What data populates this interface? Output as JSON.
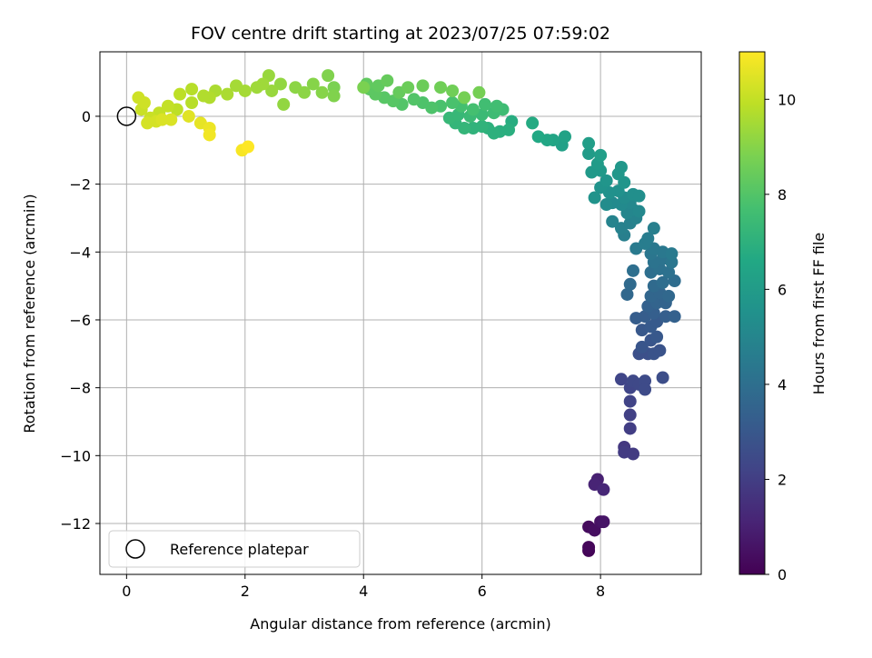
{
  "chart_data": {
    "type": "scatter",
    "title": "FOV centre drift starting at 2023/07/25 07:59:02",
    "xlabel": "Angular distance from reference (arcmin)",
    "ylabel": "Rotation from reference (arcmin)",
    "xlim": [
      -0.45,
      9.7
    ],
    "ylim": [
      -13.5,
      1.9
    ],
    "xticks": [
      0,
      2,
      4,
      6,
      8
    ],
    "yticks": [
      -12,
      -10,
      -8,
      -6,
      -4,
      -2,
      0
    ],
    "grid": true,
    "colormap": "viridis",
    "colorbar": {
      "label": "Hours from first FF file",
      "range": [
        0,
        11
      ],
      "ticks": [
        0,
        2,
        4,
        6,
        8,
        10
      ]
    },
    "legend": {
      "placement": "lower-left",
      "entries": [
        "Reference platepar"
      ]
    },
    "reference_point": {
      "x": 0,
      "y": 0
    },
    "points": [
      {
        "x": 7.8,
        "y": -12.8,
        "t": 0.1
      },
      {
        "x": 7.8,
        "y": -12.7,
        "t": 0.2
      },
      {
        "x": 7.8,
        "y": -12.1,
        "t": 0.3
      },
      {
        "x": 7.9,
        "y": -12.2,
        "t": 0.4
      },
      {
        "x": 8.0,
        "y": -11.95,
        "t": 0.5
      },
      {
        "x": 8.05,
        "y": -11.95,
        "t": 0.6
      },
      {
        "x": 7.95,
        "y": -10.7,
        "t": 1.0
      },
      {
        "x": 7.9,
        "y": -10.85,
        "t": 1.1
      },
      {
        "x": 8.05,
        "y": -11.0,
        "t": 1.2
      },
      {
        "x": 8.4,
        "y": -9.75,
        "t": 1.8
      },
      {
        "x": 8.4,
        "y": -9.9,
        "t": 1.9
      },
      {
        "x": 8.55,
        "y": -9.95,
        "t": 1.9
      },
      {
        "x": 8.5,
        "y": -9.2,
        "t": 2.0
      },
      {
        "x": 8.5,
        "y": -8.8,
        "t": 2.1
      },
      {
        "x": 8.5,
        "y": -8.4,
        "t": 2.2
      },
      {
        "x": 8.35,
        "y": -7.75,
        "t": 2.3
      },
      {
        "x": 8.5,
        "y": -8.0,
        "t": 2.3
      },
      {
        "x": 8.55,
        "y": -7.8,
        "t": 2.4
      },
      {
        "x": 8.65,
        "y": -7.9,
        "t": 2.4
      },
      {
        "x": 8.75,
        "y": -7.8,
        "t": 2.5
      },
      {
        "x": 8.75,
        "y": -8.05,
        "t": 2.5
      },
      {
        "x": 9.05,
        "y": -7.7,
        "t": 2.6
      },
      {
        "x": 8.65,
        "y": -7.0,
        "t": 2.7
      },
      {
        "x": 8.8,
        "y": -7.0,
        "t": 2.7
      },
      {
        "x": 8.9,
        "y": -7.0,
        "t": 2.8
      },
      {
        "x": 9.0,
        "y": -6.9,
        "t": 2.8
      },
      {
        "x": 8.7,
        "y": -6.8,
        "t": 2.9
      },
      {
        "x": 8.85,
        "y": -6.6,
        "t": 2.9
      },
      {
        "x": 8.95,
        "y": -6.5,
        "t": 3.0
      },
      {
        "x": 8.7,
        "y": -6.3,
        "t": 3.0
      },
      {
        "x": 8.85,
        "y": -6.2,
        "t": 3.1
      },
      {
        "x": 8.95,
        "y": -6.05,
        "t": 3.1
      },
      {
        "x": 8.6,
        "y": -5.95,
        "t": 3.2
      },
      {
        "x": 8.75,
        "y": -5.9,
        "t": 3.2
      },
      {
        "x": 8.9,
        "y": -5.8,
        "t": 3.3
      },
      {
        "x": 9.1,
        "y": -5.9,
        "t": 3.3
      },
      {
        "x": 9.25,
        "y": -5.9,
        "t": 3.4
      },
      {
        "x": 8.8,
        "y": -5.6,
        "t": 3.4
      },
      {
        "x": 8.95,
        "y": -5.5,
        "t": 3.5
      },
      {
        "x": 9.1,
        "y": -5.5,
        "t": 3.5
      },
      {
        "x": 8.85,
        "y": -5.3,
        "t": 3.6
      },
      {
        "x": 9.0,
        "y": -5.2,
        "t": 3.6
      },
      {
        "x": 9.15,
        "y": -5.3,
        "t": 3.7
      },
      {
        "x": 8.45,
        "y": -5.25,
        "t": 3.7
      },
      {
        "x": 8.5,
        "y": -4.95,
        "t": 3.8
      },
      {
        "x": 8.9,
        "y": -5.0,
        "t": 3.8
      },
      {
        "x": 9.05,
        "y": -4.9,
        "t": 3.9
      },
      {
        "x": 9.25,
        "y": -4.85,
        "t": 3.9
      },
      {
        "x": 8.55,
        "y": -4.55,
        "t": 4.0
      },
      {
        "x": 8.85,
        "y": -4.6,
        "t": 4.0
      },
      {
        "x": 9.0,
        "y": -4.5,
        "t": 4.1
      },
      {
        "x": 9.15,
        "y": -4.6,
        "t": 4.1
      },
      {
        "x": 8.9,
        "y": -4.3,
        "t": 4.2
      },
      {
        "x": 9.05,
        "y": -4.2,
        "t": 4.2
      },
      {
        "x": 9.2,
        "y": -4.3,
        "t": 4.3
      },
      {
        "x": 8.85,
        "y": -4.05,
        "t": 4.3
      },
      {
        "x": 8.9,
        "y": -3.9,
        "t": 4.4
      },
      {
        "x": 9.05,
        "y": -4.0,
        "t": 4.4
      },
      {
        "x": 9.2,
        "y": -4.05,
        "t": 4.5
      },
      {
        "x": 8.6,
        "y": -3.9,
        "t": 4.5
      },
      {
        "x": 8.75,
        "y": -3.75,
        "t": 4.6
      },
      {
        "x": 8.8,
        "y": -3.6,
        "t": 4.6
      },
      {
        "x": 8.9,
        "y": -3.3,
        "t": 4.7
      },
      {
        "x": 8.4,
        "y": -3.5,
        "t": 4.7
      },
      {
        "x": 8.35,
        "y": -3.3,
        "t": 4.8
      },
      {
        "x": 8.5,
        "y": -3.15,
        "t": 4.8
      },
      {
        "x": 8.2,
        "y": -3.1,
        "t": 4.9
      },
      {
        "x": 8.6,
        "y": -3.0,
        "t": 4.9
      },
      {
        "x": 8.45,
        "y": -2.85,
        "t": 5.0
      },
      {
        "x": 8.55,
        "y": -2.75,
        "t": 5.0
      },
      {
        "x": 8.65,
        "y": -2.8,
        "t": 5.1
      },
      {
        "x": 8.5,
        "y": -2.55,
        "t": 5.1
      },
      {
        "x": 8.35,
        "y": -2.6,
        "t": 5.2
      },
      {
        "x": 8.2,
        "y": -2.55,
        "t": 5.2
      },
      {
        "x": 8.1,
        "y": -2.6,
        "t": 5.3
      },
      {
        "x": 8.4,
        "y": -2.4,
        "t": 5.3
      },
      {
        "x": 8.55,
        "y": -2.3,
        "t": 5.4
      },
      {
        "x": 8.65,
        "y": -2.35,
        "t": 5.4
      },
      {
        "x": 8.3,
        "y": -2.2,
        "t": 5.5
      },
      {
        "x": 8.15,
        "y": -2.25,
        "t": 5.5
      },
      {
        "x": 8.0,
        "y": -2.1,
        "t": 5.6
      },
      {
        "x": 7.9,
        "y": -2.4,
        "t": 5.6
      },
      {
        "x": 8.4,
        "y": -1.95,
        "t": 5.7
      },
      {
        "x": 8.1,
        "y": -1.9,
        "t": 5.7
      },
      {
        "x": 8.3,
        "y": -1.7,
        "t": 5.8
      },
      {
        "x": 8.35,
        "y": -1.5,
        "t": 5.8
      },
      {
        "x": 8.0,
        "y": -1.6,
        "t": 5.9
      },
      {
        "x": 7.85,
        "y": -1.65,
        "t": 5.9
      },
      {
        "x": 7.95,
        "y": -1.4,
        "t": 6.0
      },
      {
        "x": 7.8,
        "y": -1.1,
        "t": 6.0
      },
      {
        "x": 8.0,
        "y": -1.15,
        "t": 6.1
      },
      {
        "x": 7.8,
        "y": -0.8,
        "t": 6.1
      },
      {
        "x": 7.35,
        "y": -0.85,
        "t": 6.2
      },
      {
        "x": 7.4,
        "y": -0.6,
        "t": 6.3
      },
      {
        "x": 7.2,
        "y": -0.7,
        "t": 6.4
      },
      {
        "x": 7.1,
        "y": -0.7,
        "t": 6.5
      },
      {
        "x": 6.95,
        "y": -0.6,
        "t": 6.6
      },
      {
        "x": 6.85,
        "y": -0.2,
        "t": 6.7
      },
      {
        "x": 6.5,
        "y": -0.15,
        "t": 6.8
      },
      {
        "x": 6.45,
        "y": -0.4,
        "t": 6.9
      },
      {
        "x": 6.3,
        "y": -0.45,
        "t": 6.9
      },
      {
        "x": 6.2,
        "y": -0.5,
        "t": 7.0
      },
      {
        "x": 6.1,
        "y": -0.35,
        "t": 7.0
      },
      {
        "x": 6.0,
        "y": -0.3,
        "t": 7.1
      },
      {
        "x": 5.85,
        "y": -0.35,
        "t": 7.1
      },
      {
        "x": 5.7,
        "y": -0.35,
        "t": 7.2
      },
      {
        "x": 5.55,
        "y": -0.2,
        "t": 7.2
      },
      {
        "x": 5.45,
        "y": -0.05,
        "t": 7.3
      },
      {
        "x": 5.6,
        "y": 0.05,
        "t": 7.3
      },
      {
        "x": 5.8,
        "y": 0.0,
        "t": 7.4
      },
      {
        "x": 6.0,
        "y": 0.05,
        "t": 7.4
      },
      {
        "x": 6.2,
        "y": 0.1,
        "t": 7.5
      },
      {
        "x": 6.35,
        "y": 0.2,
        "t": 7.5
      },
      {
        "x": 6.25,
        "y": 0.3,
        "t": 7.6
      },
      {
        "x": 6.05,
        "y": 0.35,
        "t": 7.6
      },
      {
        "x": 5.85,
        "y": 0.2,
        "t": 7.7
      },
      {
        "x": 5.65,
        "y": 0.3,
        "t": 7.7
      },
      {
        "x": 5.5,
        "y": 0.4,
        "t": 7.8
      },
      {
        "x": 5.3,
        "y": 0.3,
        "t": 7.8
      },
      {
        "x": 5.15,
        "y": 0.25,
        "t": 7.9
      },
      {
        "x": 5.0,
        "y": 0.4,
        "t": 7.9
      },
      {
        "x": 4.85,
        "y": 0.5,
        "t": 8.0
      },
      {
        "x": 4.65,
        "y": 0.35,
        "t": 8.0
      },
      {
        "x": 4.5,
        "y": 0.45,
        "t": 8.1
      },
      {
        "x": 4.35,
        "y": 0.55,
        "t": 8.1
      },
      {
        "x": 4.2,
        "y": 0.65,
        "t": 8.2
      },
      {
        "x": 4.1,
        "y": 0.8,
        "t": 8.2
      },
      {
        "x": 4.05,
        "y": 0.95,
        "t": 8.3
      },
      {
        "x": 4.25,
        "y": 0.9,
        "t": 8.3
      },
      {
        "x": 4.4,
        "y": 1.05,
        "t": 8.4
      },
      {
        "x": 4.6,
        "y": 0.7,
        "t": 8.4
      },
      {
        "x": 4.75,
        "y": 0.85,
        "t": 8.5
      },
      {
        "x": 5.0,
        "y": 0.9,
        "t": 8.5
      },
      {
        "x": 5.3,
        "y": 0.85,
        "t": 8.6
      },
      {
        "x": 5.5,
        "y": 0.75,
        "t": 8.6
      },
      {
        "x": 5.7,
        "y": 0.55,
        "t": 8.7
      },
      {
        "x": 5.95,
        "y": 0.7,
        "t": 8.7
      },
      {
        "x": 4.0,
        "y": 0.85,
        "t": 8.8
      },
      {
        "x": 3.5,
        "y": 0.85,
        "t": 8.8
      },
      {
        "x": 3.5,
        "y": 0.6,
        "t": 8.9
      },
      {
        "x": 3.4,
        "y": 1.2,
        "t": 8.9
      },
      {
        "x": 3.3,
        "y": 0.7,
        "t": 9.0
      },
      {
        "x": 3.15,
        "y": 0.95,
        "t": 9.0
      },
      {
        "x": 3.0,
        "y": 0.7,
        "t": 9.1
      },
      {
        "x": 2.85,
        "y": 0.85,
        "t": 9.1
      },
      {
        "x": 2.65,
        "y": 0.35,
        "t": 9.2
      },
      {
        "x": 2.6,
        "y": 0.95,
        "t": 9.2
      },
      {
        "x": 2.45,
        "y": 0.75,
        "t": 9.3
      },
      {
        "x": 2.4,
        "y": 1.2,
        "t": 9.3
      },
      {
        "x": 2.3,
        "y": 0.95,
        "t": 9.4
      },
      {
        "x": 2.2,
        "y": 0.85,
        "t": 9.4
      },
      {
        "x": 2.0,
        "y": 0.75,
        "t": 9.5
      },
      {
        "x": 1.85,
        "y": 0.9,
        "t": 9.5
      },
      {
        "x": 1.7,
        "y": 0.65,
        "t": 9.6
      },
      {
        "x": 1.5,
        "y": 0.75,
        "t": 9.6
      },
      {
        "x": 1.4,
        "y": 0.55,
        "t": 9.7
      },
      {
        "x": 1.3,
        "y": 0.6,
        "t": 9.7
      },
      {
        "x": 1.1,
        "y": 0.4,
        "t": 9.8
      },
      {
        "x": 1.1,
        "y": 0.8,
        "t": 9.8
      },
      {
        "x": 0.9,
        "y": 0.65,
        "t": 9.9
      },
      {
        "x": 0.85,
        "y": 0.2,
        "t": 9.9
      },
      {
        "x": 0.7,
        "y": 0.3,
        "t": 10.0
      },
      {
        "x": 0.55,
        "y": 0.1,
        "t": 10.0
      },
      {
        "x": 0.4,
        "y": -0.05,
        "t": 10.1
      },
      {
        "x": 0.25,
        "y": 0.2,
        "t": 10.1
      },
      {
        "x": 0.2,
        "y": 0.55,
        "t": 10.2
      },
      {
        "x": 0.3,
        "y": 0.4,
        "t": 10.2
      },
      {
        "x": 0.35,
        "y": -0.2,
        "t": 10.3
      },
      {
        "x": 0.5,
        "y": -0.15,
        "t": 10.3
      },
      {
        "x": 0.6,
        "y": -0.1,
        "t": 10.4
      },
      {
        "x": 0.75,
        "y": -0.1,
        "t": 10.4
      },
      {
        "x": 1.05,
        "y": 0.0,
        "t": 10.5
      },
      {
        "x": 1.25,
        "y": -0.2,
        "t": 10.6
      },
      {
        "x": 1.4,
        "y": -0.35,
        "t": 10.7
      },
      {
        "x": 1.4,
        "y": -0.55,
        "t": 10.8
      },
      {
        "x": 1.95,
        "y": -1.0,
        "t": 10.9
      },
      {
        "x": 2.05,
        "y": -0.9,
        "t": 11.0
      }
    ]
  }
}
